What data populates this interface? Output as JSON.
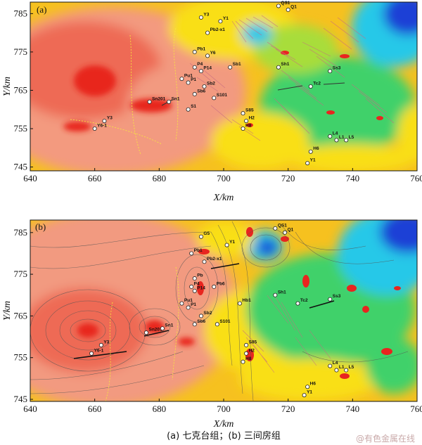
{
  "panels": [
    {
      "label": "(a)",
      "xlabel": "X/km",
      "ylabel": "Y/km",
      "xticks": [
        "640",
        "660",
        "680",
        "700",
        "720",
        "740",
        "760"
      ],
      "yticks": [
        "785",
        "775",
        "765",
        "755",
        "745"
      ],
      "wells": [
        {
          "name": "QS1",
          "x": 717,
          "y": 787
        },
        {
          "name": "Q1",
          "x": 720,
          "y": 786
        },
        {
          "name": "Y3",
          "x": 693,
          "y": 784
        },
        {
          "name": "Y1",
          "x": 699,
          "y": 783
        },
        {
          "name": "Pb2-x1",
          "x": 695,
          "y": 780
        },
        {
          "name": "Pb1",
          "x": 691,
          "y": 775
        },
        {
          "name": "Y6",
          "x": 695,
          "y": 774
        },
        {
          "name": "P4",
          "x": 691,
          "y": 771
        },
        {
          "name": "P14",
          "x": 693,
          "y": 770
        },
        {
          "name": "Pu1",
          "x": 687,
          "y": 768
        },
        {
          "name": "P1",
          "x": 689,
          "y": 767
        },
        {
          "name": "Sb2",
          "x": 694,
          "y": 766
        },
        {
          "name": "Sb1",
          "x": 702,
          "y": 771
        },
        {
          "name": "Sb6",
          "x": 691,
          "y": 764
        },
        {
          "name": "S101",
          "x": 697,
          "y": 763
        },
        {
          "name": "Sn201",
          "x": 677,
          "y": 762
        },
        {
          "name": "Sn1",
          "x": 683,
          "y": 762
        },
        {
          "name": "S1",
          "x": 689,
          "y": 760
        },
        {
          "name": "S85",
          "x": 706,
          "y": 759
        },
        {
          "name": "H2",
          "x": 707,
          "y": 757
        },
        {
          "name": "H8",
          "x": 706,
          "y": 755
        },
        {
          "name": "Sh1",
          "x": 717,
          "y": 771
        },
        {
          "name": "Tc2",
          "x": 727,
          "y": 766
        },
        {
          "name": "Ss3",
          "x": 733,
          "y": 770
        },
        {
          "name": "Y3",
          "x": 663,
          "y": 757
        },
        {
          "name": "Y6-1",
          "x": 660,
          "y": 755
        },
        {
          "name": "L4",
          "x": 733,
          "y": 753
        },
        {
          "name": "L1",
          "x": 735,
          "y": 752
        },
        {
          "name": "L5",
          "x": 738,
          "y": 752
        },
        {
          "name": "H6",
          "x": 727,
          "y": 749
        },
        {
          "name": "Y1",
          "x": 726,
          "y": 746
        }
      ]
    },
    {
      "label": "(b)",
      "xlabel": "X/km",
      "ylabel": "Y/km",
      "xticks": [
        "640",
        "660",
        "680",
        "700",
        "720",
        "740",
        "760"
      ],
      "yticks": [
        "785",
        "775",
        "765",
        "755",
        "745"
      ],
      "wells": [
        {
          "name": "QS1",
          "x": 716,
          "y": 786
        },
        {
          "name": "Q1",
          "x": 719,
          "y": 785
        },
        {
          "name": "G5",
          "x": 693,
          "y": 784
        },
        {
          "name": "Y1",
          "x": 701,
          "y": 782
        },
        {
          "name": "Pb1",
          "x": 690,
          "y": 780
        },
        {
          "name": "Pb2-x1",
          "x": 694,
          "y": 778
        },
        {
          "name": "Pb",
          "x": 691,
          "y": 774
        },
        {
          "name": "P4",
          "x": 690,
          "y": 772
        },
        {
          "name": "P14",
          "x": 691,
          "y": 771
        },
        {
          "name": "Pb6",
          "x": 697,
          "y": 772
        },
        {
          "name": "Pu1",
          "x": 687,
          "y": 768
        },
        {
          "name": "P1",
          "x": 689,
          "y": 767
        },
        {
          "name": "Hb1",
          "x": 705,
          "y": 768
        },
        {
          "name": "Sh1",
          "x": 716,
          "y": 770
        },
        {
          "name": "Tc2",
          "x": 723,
          "y": 768
        },
        {
          "name": "Ss3",
          "x": 733,
          "y": 769
        },
        {
          "name": "Sb2",
          "x": 693,
          "y": 765
        },
        {
          "name": "Sb6",
          "x": 691,
          "y": 763
        },
        {
          "name": "S101",
          "x": 698,
          "y": 763
        },
        {
          "name": "Sn201",
          "x": 676,
          "y": 761
        },
        {
          "name": "Sn1",
          "x": 681,
          "y": 762
        },
        {
          "name": "S85",
          "x": 707,
          "y": 758
        },
        {
          "name": "H2",
          "x": 707,
          "y": 756
        },
        {
          "name": "H8",
          "x": 706,
          "y": 754
        },
        {
          "name": "Y3",
          "x": 662,
          "y": 758
        },
        {
          "name": "Y6-1",
          "x": 659,
          "y": 756
        },
        {
          "name": "L4",
          "x": 733,
          "y": 753
        },
        {
          "name": "L1",
          "x": 735,
          "y": 752
        },
        {
          "name": "L5",
          "x": 738,
          "y": 752
        },
        {
          "name": "H6",
          "x": 726,
          "y": 748
        },
        {
          "name": "Y1",
          "x": 725,
          "y": 746
        }
      ]
    }
  ],
  "caption": "(a)  七克台组；(b)  三间房组",
  "watermark": "@有色金属在线",
  "colors": {
    "red": "#e8251f",
    "salmon": "#f29a80",
    "orange": "#f7a43a",
    "yellow": "#f9df17",
    "green": "#3fd16a",
    "cyan": "#27c8e8",
    "blue": "#1c3fd6",
    "navy": "#0a2a99",
    "vector": "#c76a83",
    "fault": "#333333"
  }
}
